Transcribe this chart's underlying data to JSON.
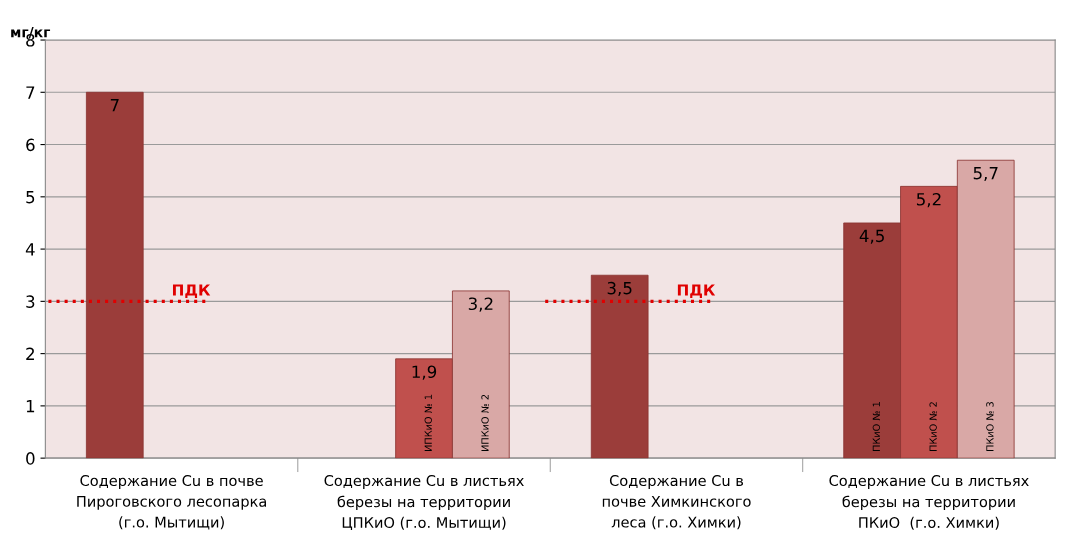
{
  "chart_data": {
    "type": "bar",
    "ylabel": "мг/кг",
    "categories": [
      "Содержание Cu в почве\nПироговского лесопарка\n(г.о. Мытищи)",
      "Содержание Cu в листьях\nберезы на территории\nЦПКиО (г.о. Мытищи)",
      "Содержание Cu в\nпочве Химкинского\nлеса (г.о. Химки)",
      "Содержание Cu в листьях\nберезы на территории\nПКиО  (г.о. Химки)"
    ],
    "series": [
      {
        "color": "#9b3d3a",
        "values": [
          7,
          null,
          3.5,
          4.5
        ],
        "value_labels": [
          "7",
          null,
          "3,5",
          "4,5"
        ]
      },
      {
        "color": "#c0504d",
        "values": [
          null,
          1.9,
          null,
          5.2
        ],
        "value_labels": [
          null,
          "1,9",
          null,
          "5,2"
        ]
      },
      {
        "color": "#d9a8a6",
        "values": [
          null,
          3.2,
          null,
          5.7
        ],
        "value_labels": [
          null,
          "3,2",
          null,
          "5,7"
        ]
      }
    ],
    "ylim": [
      0,
      8
    ],
    "yticks": [
      0,
      1,
      2,
      3,
      4,
      5,
      6,
      7,
      8
    ],
    "grid": "y",
    "ref_lines": [
      {
        "axis": "y",
        "value": 3,
        "label": "ПДК",
        "color": "#e00000",
        "line_style": "dotted"
      }
    ],
    "annotations": [
      "ИПКиО № 1",
      "ИПКиО № 2",
      "ПКиО № 1",
      "ПКиО № 2",
      "ПКиО № 3"
    ]
  }
}
